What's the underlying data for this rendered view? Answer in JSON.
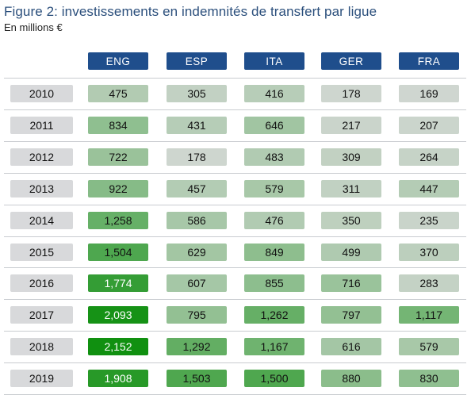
{
  "title": "Figure 2: investissements en indemnités de transfert par ligue",
  "subtitle": "En millions €",
  "chart_data": {
    "type": "table",
    "columns": [
      "ENG",
      "ESP",
      "ITA",
      "GER",
      "FRA"
    ],
    "rows": [
      {
        "year": "2010",
        "values": [
          475,
          305,
          416,
          178,
          169
        ],
        "labels": [
          "475",
          "305",
          "416",
          "178",
          "169"
        ]
      },
      {
        "year": "2011",
        "values": [
          834,
          431,
          646,
          217,
          207
        ],
        "labels": [
          "834",
          "431",
          "646",
          "217",
          "207"
        ]
      },
      {
        "year": "2012",
        "values": [
          722,
          178,
          483,
          309,
          264
        ],
        "labels": [
          "722",
          "178",
          "483",
          "309",
          "264"
        ]
      },
      {
        "year": "2013",
        "values": [
          922,
          457,
          579,
          311,
          447
        ],
        "labels": [
          "922",
          "457",
          "579",
          "311",
          "447"
        ]
      },
      {
        "year": "2014",
        "values": [
          1258,
          586,
          476,
          350,
          235
        ],
        "labels": [
          "1,258",
          "586",
          "476",
          "350",
          "235"
        ]
      },
      {
        "year": "2015",
        "values": [
          1504,
          629,
          849,
          499,
          370
        ],
        "labels": [
          "1,504",
          "629",
          "849",
          "499",
          "370"
        ]
      },
      {
        "year": "2016",
        "values": [
          1774,
          607,
          855,
          716,
          283
        ],
        "labels": [
          "1,774",
          "607",
          "855",
          "716",
          "283"
        ]
      },
      {
        "year": "2017",
        "values": [
          2093,
          795,
          1262,
          797,
          1117
        ],
        "labels": [
          "2,093",
          "795",
          "1,262",
          "797",
          "1,117"
        ]
      },
      {
        "year": "2018",
        "values": [
          2152,
          1292,
          1167,
          616,
          579
        ],
        "labels": [
          "2,152",
          "1,292",
          "1,167",
          "616",
          "579"
        ]
      },
      {
        "year": "2019",
        "values": [
          1908,
          1503,
          1500,
          880,
          830
        ],
        "labels": [
          "1,908",
          "1,503",
          "1,500",
          "880",
          "830"
        ]
      }
    ],
    "color_scale": {
      "low": "#cfd6d0",
      "high": "#109010",
      "min": 169,
      "max": 2152
    },
    "colors": {
      "header_bg": "#1f4e8c",
      "header_text": "#ffffff",
      "year_bg": "#d8d9db",
      "title": "#2b4f7c"
    }
  }
}
